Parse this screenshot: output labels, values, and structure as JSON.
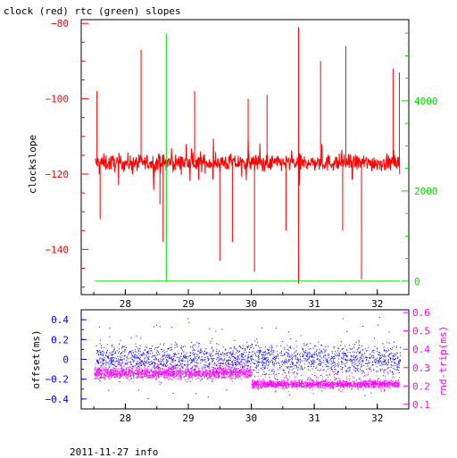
{
  "chart_data": [
    {
      "type": "line",
      "title": "clock (red) rtc (green) slopes",
      "ylabel": "clockslope",
      "x_ticks": [
        "28",
        "29",
        "30",
        "31",
        "32"
      ],
      "x_range": [
        27.3,
        32.5
      ],
      "ylim_left": [
        -152,
        -79
      ],
      "yticks_left": [
        -80,
        -100,
        -120,
        -140
      ],
      "ylim_right": [
        -300,
        5800
      ],
      "yticks_right": [
        0,
        2000,
        4000
      ],
      "series": [
        {
          "color": "#ff0000",
          "axis": "left",
          "baseline": -117,
          "noise": 2.2,
          "spikes": [
            {
              "x": 27.55,
              "y": -98
            },
            {
              "x": 27.6,
              "y": -132
            },
            {
              "x": 28.25,
              "y": -87
            },
            {
              "x": 28.55,
              "y": -128
            },
            {
              "x": 28.6,
              "y": -138
            },
            {
              "x": 29.1,
              "y": -98
            },
            {
              "x": 29.5,
              "y": -143
            },
            {
              "x": 29.7,
              "y": -138
            },
            {
              "x": 29.95,
              "y": -100
            },
            {
              "x": 30.05,
              "y": -146
            },
            {
              "x": 30.25,
              "y": -99
            },
            {
              "x": 30.55,
              "y": -135
            },
            {
              "x": 30.75,
              "y": -81
            },
            {
              "x": 30.75,
              "y": -149
            },
            {
              "x": 31.1,
              "y": -90
            },
            {
              "x": 31.45,
              "y": -135
            },
            {
              "x": 31.5,
              "y": -86
            },
            {
              "x": 31.75,
              "y": -148
            },
            {
              "x": 32.25,
              "y": -92
            },
            {
              "x": 32.35,
              "y": -93
            }
          ]
        },
        {
          "color": "#00dd00",
          "axis": "right",
          "baseline": 0,
          "spikes": [
            {
              "x": 28.65,
              "y": 5500
            }
          ]
        }
      ]
    },
    {
      "type": "scatter",
      "ylabel_left": "offset(ms)",
      "ylabel_right": "rnd-trip(ms)",
      "x_ticks": [
        "28",
        "29",
        "30",
        "31",
        "32"
      ],
      "x_range": [
        27.3,
        32.5
      ],
      "ylim_left": [
        -0.5,
        0.5
      ],
      "yticks_left": [
        "0.4",
        "0.2",
        "0",
        "-0.2",
        "-0.4"
      ],
      "ylim_right": [
        0.075,
        0.615
      ],
      "yticks_right": [
        "0.6",
        "0.5",
        "0.4",
        "0.3",
        "0.2",
        "0.1"
      ],
      "series": [
        {
          "color": "#0000ff",
          "axis": "left",
          "center": 0.0,
          "spread": 0.15
        },
        {
          "color": "#ff00ff",
          "axis": "right",
          "segments": [
            {
              "x": [
                27.5,
                30.0
              ],
              "center": 0.27,
              "spread": 0.03
            },
            {
              "x": [
                30.0,
                32.35
              ],
              "center": 0.21,
              "spread": 0.02
            }
          ]
        }
      ]
    }
  ],
  "footer": "2011-11-27 info",
  "colors": {
    "clock": "#ff0000",
    "rtc": "#00dd00",
    "offset": "#0000ff",
    "roundtrip": "#ff00ff",
    "axis_left_top": "#ff0000",
    "axis_right_top": "#00dd00",
    "axis_left_bottom": "#0000ff",
    "axis_right_bottom": "#ff00ff"
  }
}
